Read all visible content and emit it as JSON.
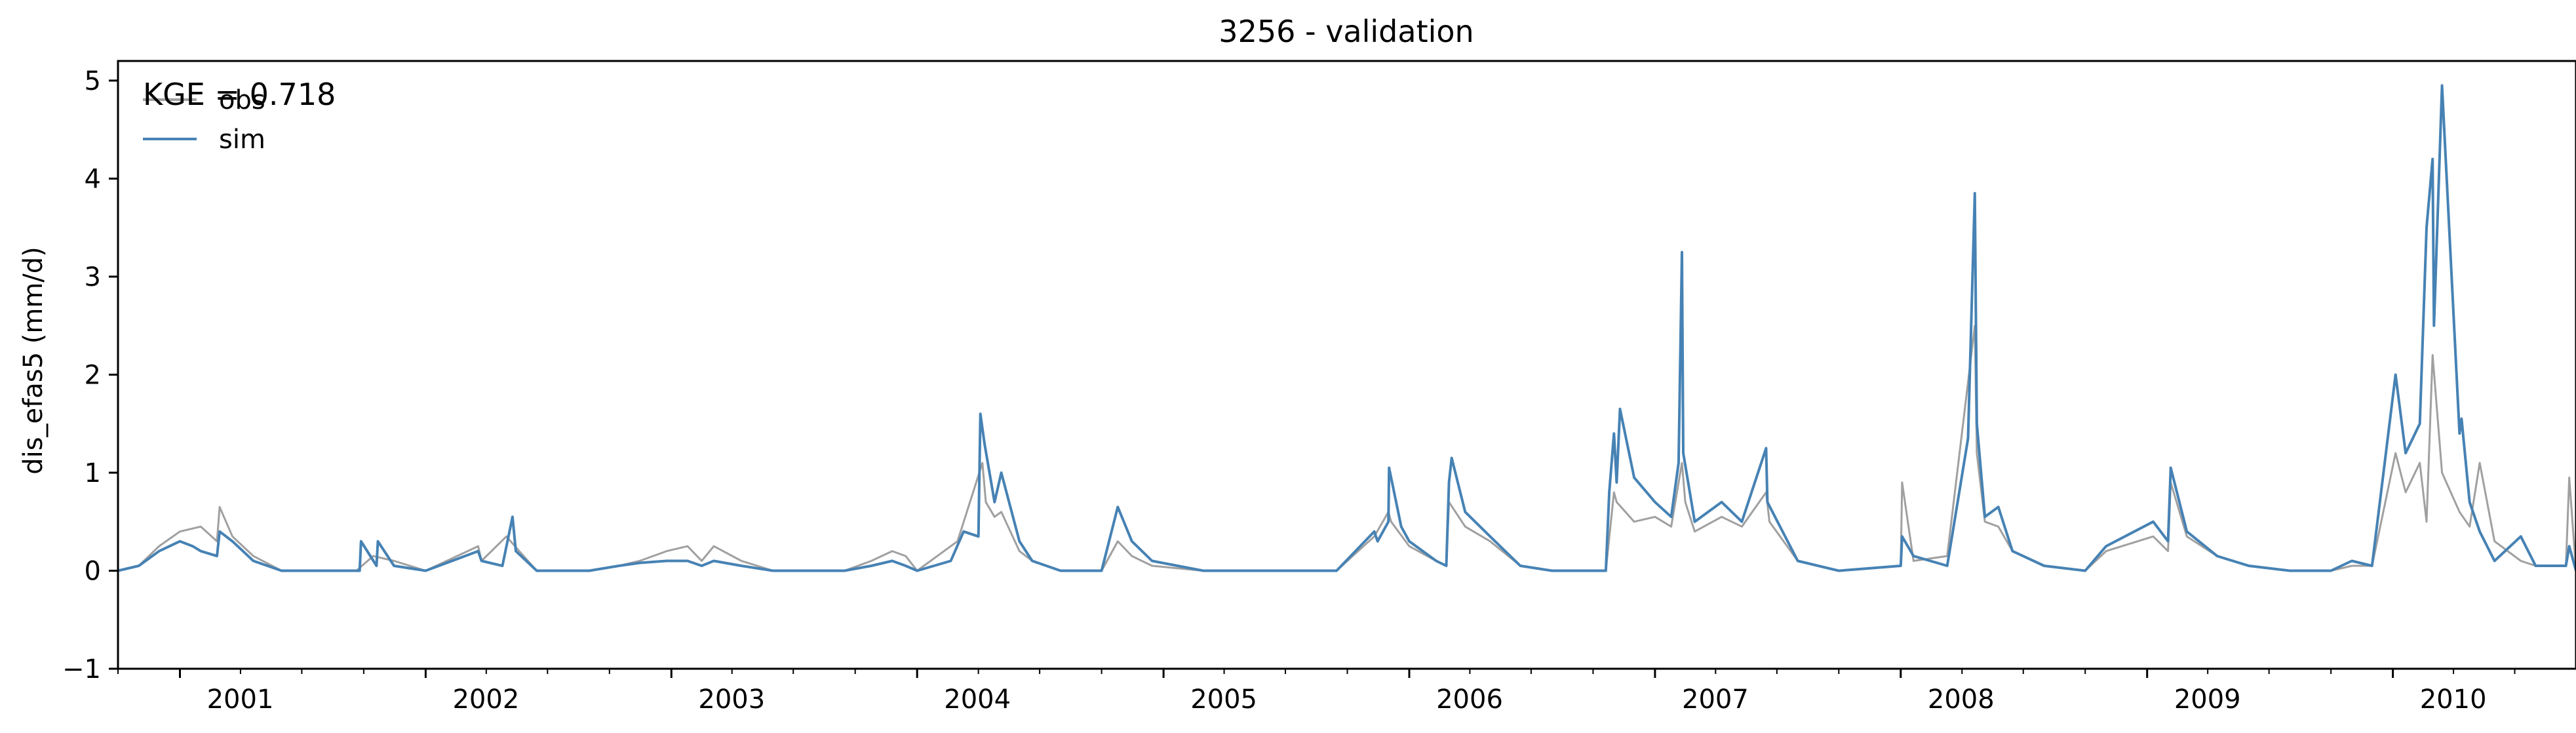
{
  "chart_data": {
    "type": "line",
    "title": "3256 - validation",
    "xlabel": "",
    "ylabel": "dis_efas5 (mm/d)",
    "annotation": "KGE = 0.718",
    "xlim": [
      "2000-10-01",
      "2010-09-30"
    ],
    "ylim": [
      -1,
      5.2
    ],
    "yticks": [
      -1,
      0,
      1,
      2,
      3,
      4,
      5
    ],
    "xticks": [
      {
        "date": "2001-01-01",
        "label": "2001"
      },
      {
        "date": "2002-01-01",
        "label": "2002"
      },
      {
        "date": "2003-01-01",
        "label": "2003"
      },
      {
        "date": "2004-01-01",
        "label": "2004"
      },
      {
        "date": "2005-01-01",
        "label": "2005"
      },
      {
        "date": "2006-01-01",
        "label": "2006"
      },
      {
        "date": "2007-01-01",
        "label": "2007"
      },
      {
        "date": "2008-01-01",
        "label": "2008"
      },
      {
        "date": "2009-01-01",
        "label": "2009"
      },
      {
        "date": "2010-01-01",
        "label": "2010"
      }
    ],
    "grid": false,
    "legend_position": "top-left",
    "series": [
      {
        "name": "obs",
        "color": "#a0a0a0",
        "x": [
          "2000-10-01",
          "2000-11-01",
          "2000-12-01",
          "2001-01-01",
          "2001-02-01",
          "2001-02-25",
          "2001-03-01",
          "2001-03-20",
          "2001-04-20",
          "2001-06-01",
          "2001-09-20",
          "2001-10-15",
          "2001-11-15",
          "2002-01-01",
          "2002-03-20",
          "2002-03-25",
          "2002-05-01",
          "2002-05-20",
          "2002-06-15",
          "2002-09-01",
          "2002-10-15",
          "2002-11-15",
          "2002-12-25",
          "2003-01-25",
          "2003-02-15",
          "2003-03-05",
          "2003-04-15",
          "2003-06-01",
          "2003-09-15",
          "2003-10-25",
          "2003-11-25",
          "2003-12-15",
          "2004-01-01",
          "2004-03-01",
          "2004-04-07",
          "2004-04-12",
          "2004-04-25",
          "2004-05-05",
          "2004-06-01",
          "2004-06-20",
          "2004-08-01",
          "2004-10-01",
          "2004-10-25",
          "2004-11-15",
          "2004-12-15",
          "2005-03-01",
          "2005-09-15",
          "2005-11-10",
          "2005-12-01",
          "2005-12-05",
          "2006-01-01",
          "2006-02-10",
          "2006-02-25",
          "2006-03-01",
          "2006-03-25",
          "2006-05-01",
          "2006-06-15",
          "2006-08-01",
          "2006-10-20",
          "2006-11-01",
          "2006-11-05",
          "2006-12-01",
          "2007-01-01",
          "2007-01-25",
          "2007-02-10",
          "2007-02-15",
          "2007-03-01",
          "2007-04-10",
          "2007-05-10",
          "2007-06-15",
          "2007-06-20",
          "2007-08-01",
          "2007-10-01",
          "2008-01-01",
          "2008-01-03",
          "2008-01-20",
          "2008-03-10",
          "2008-04-20",
          "2008-04-23",
          "2008-05-05",
          "2008-05-25",
          "2008-06-15",
          "2008-08-01",
          "2008-10-01",
          "2008-11-01",
          "2009-01-10",
          "2009-02-01",
          "2009-02-05",
          "2009-03-01",
          "2009-04-15",
          "2009-06-01",
          "2009-08-01",
          "2009-10-01",
          "2009-11-01",
          "2009-12-01",
          "2010-01-05",
          "2010-01-20",
          "2010-02-10",
          "2010-02-20",
          "2010-03-01",
          "2010-03-15",
          "2010-04-10",
          "2010-04-25",
          "2010-05-10",
          "2010-06-01",
          "2010-07-10",
          "2010-08-01",
          "2010-09-15",
          "2010-09-20",
          "2010-09-30"
        ],
        "y": [
          0.0,
          0.05,
          0.25,
          0.4,
          0.45,
          0.3,
          0.65,
          0.35,
          0.15,
          0.0,
          0.0,
          0.15,
          0.1,
          0.0,
          0.25,
          0.1,
          0.35,
          0.2,
          0.0,
          0.0,
          0.05,
          0.1,
          0.2,
          0.25,
          0.1,
          0.25,
          0.1,
          0.0,
          0.0,
          0.1,
          0.2,
          0.15,
          0.0,
          0.3,
          1.1,
          0.7,
          0.55,
          0.6,
          0.2,
          0.1,
          0.0,
          0.0,
          0.3,
          0.15,
          0.05,
          0.0,
          0.0,
          0.35,
          0.6,
          0.5,
          0.25,
          0.1,
          0.05,
          0.7,
          0.45,
          0.3,
          0.05,
          0.0,
          0.0,
          0.8,
          0.7,
          0.5,
          0.55,
          0.45,
          1.1,
          0.7,
          0.4,
          0.55,
          0.45,
          0.8,
          0.5,
          0.1,
          0.0,
          0.05,
          0.9,
          0.1,
          0.15,
          2.5,
          1.2,
          0.5,
          0.45,
          0.2,
          0.05,
          0.0,
          0.2,
          0.35,
          0.2,
          0.9,
          0.35,
          0.15,
          0.05,
          0.0,
          0.0,
          0.05,
          0.05,
          1.2,
          0.8,
          1.1,
          0.5,
          2.2,
          1.0,
          0.6,
          0.45,
          1.1,
          0.3,
          0.1,
          0.05,
          0.05,
          0.95,
          0.0
        ]
      },
      {
        "name": "sim",
        "color": "#4682b4",
        "x": [
          "2000-10-01",
          "2000-11-01",
          "2000-12-01",
          "2001-01-01",
          "2001-01-20",
          "2001-02-01",
          "2001-02-25",
          "2001-03-01",
          "2001-03-20",
          "2001-04-20",
          "2001-06-01",
          "2001-09-25",
          "2001-09-27",
          "2001-10-20",
          "2001-10-22",
          "2001-11-15",
          "2002-01-01",
          "2002-03-20",
          "2002-03-25",
          "2002-04-25",
          "2002-05-10",
          "2002-05-15",
          "2002-06-15",
          "2002-09-01",
          "2002-10-15",
          "2002-11-15",
          "2002-12-25",
          "2003-01-25",
          "2003-02-15",
          "2003-03-05",
          "2003-04-15",
          "2003-06-01",
          "2003-09-15",
          "2003-10-25",
          "2003-11-25",
          "2003-12-15",
          "2004-01-01",
          "2004-02-20",
          "2004-03-10",
          "2004-04-01",
          "2004-04-04",
          "2004-04-10",
          "2004-04-25",
          "2004-05-05",
          "2004-06-01",
          "2004-06-20",
          "2004-08-01",
          "2004-10-01",
          "2004-10-25",
          "2004-11-15",
          "2004-12-15",
          "2005-03-01",
          "2005-09-15",
          "2005-11-10",
          "2005-11-15",
          "2005-12-01",
          "2005-12-02",
          "2005-12-20",
          "2006-01-01",
          "2006-02-10",
          "2006-02-25",
          "2006-03-01",
          "2006-03-05",
          "2006-03-25",
          "2006-05-01",
          "2006-06-15",
          "2006-08-01",
          "2006-10-20",
          "2006-10-25",
          "2006-11-01",
          "2006-11-05",
          "2006-11-10",
          "2006-12-01",
          "2007-01-01",
          "2007-01-25",
          "2007-02-05",
          "2007-02-10",
          "2007-02-12",
          "2007-03-01",
          "2007-04-10",
          "2007-05-10",
          "2007-06-15",
          "2007-06-17",
          "2007-08-01",
          "2007-10-01",
          "2008-01-01",
          "2008-01-03",
          "2008-01-20",
          "2008-03-10",
          "2008-04-10",
          "2008-04-20",
          "2008-04-23",
          "2008-05-05",
          "2008-05-25",
          "2008-06-15",
          "2008-08-01",
          "2008-10-01",
          "2008-11-01",
          "2009-01-10",
          "2009-02-01",
          "2009-02-05",
          "2009-03-01",
          "2009-04-15",
          "2009-06-01",
          "2009-08-01",
          "2009-10-01",
          "2009-11-01",
          "2009-12-01",
          "2010-01-05",
          "2010-01-20",
          "2010-02-10",
          "2010-02-20",
          "2010-03-01",
          "2010-03-03",
          "2010-03-15",
          "2010-04-10",
          "2010-04-13",
          "2010-04-25",
          "2010-05-10",
          "2010-06-01",
          "2010-07-10",
          "2010-08-01",
          "2010-09-15",
          "2010-09-20",
          "2010-09-30"
        ],
        "y": [
          0.0,
          0.05,
          0.2,
          0.3,
          0.25,
          0.2,
          0.15,
          0.4,
          0.3,
          0.1,
          0.0,
          0.0,
          0.3,
          0.05,
          0.3,
          0.05,
          0.0,
          0.2,
          0.1,
          0.05,
          0.55,
          0.2,
          0.0,
          0.0,
          0.05,
          0.08,
          0.1,
          0.1,
          0.05,
          0.1,
          0.05,
          0.0,
          0.0,
          0.05,
          0.1,
          0.05,
          0.0,
          0.1,
          0.4,
          0.35,
          1.6,
          1.3,
          0.7,
          1.0,
          0.3,
          0.1,
          0.0,
          0.0,
          0.65,
          0.3,
          0.1,
          0.0,
          0.0,
          0.4,
          0.3,
          0.5,
          1.05,
          0.45,
          0.3,
          0.1,
          0.05,
          0.9,
          1.15,
          0.6,
          0.35,
          0.05,
          0.0,
          0.0,
          0.8,
          1.4,
          0.9,
          1.65,
          0.95,
          0.7,
          0.55,
          1.1,
          3.25,
          1.2,
          0.5,
          0.7,
          0.5,
          1.25,
          0.7,
          0.1,
          0.0,
          0.05,
          0.35,
          0.15,
          0.05,
          1.35,
          3.85,
          1.5,
          0.55,
          0.65,
          0.2,
          0.05,
          0.0,
          0.25,
          0.5,
          0.3,
          1.05,
          0.4,
          0.15,
          0.05,
          0.0,
          0.0,
          0.1,
          0.05,
          2.0,
          1.2,
          1.5,
          3.5,
          4.2,
          2.5,
          4.95,
          1.4,
          1.55,
          0.7,
          0.4,
          0.1,
          0.35,
          0.05,
          0.05,
          0.25,
          0.0
        ]
      }
    ]
  }
}
